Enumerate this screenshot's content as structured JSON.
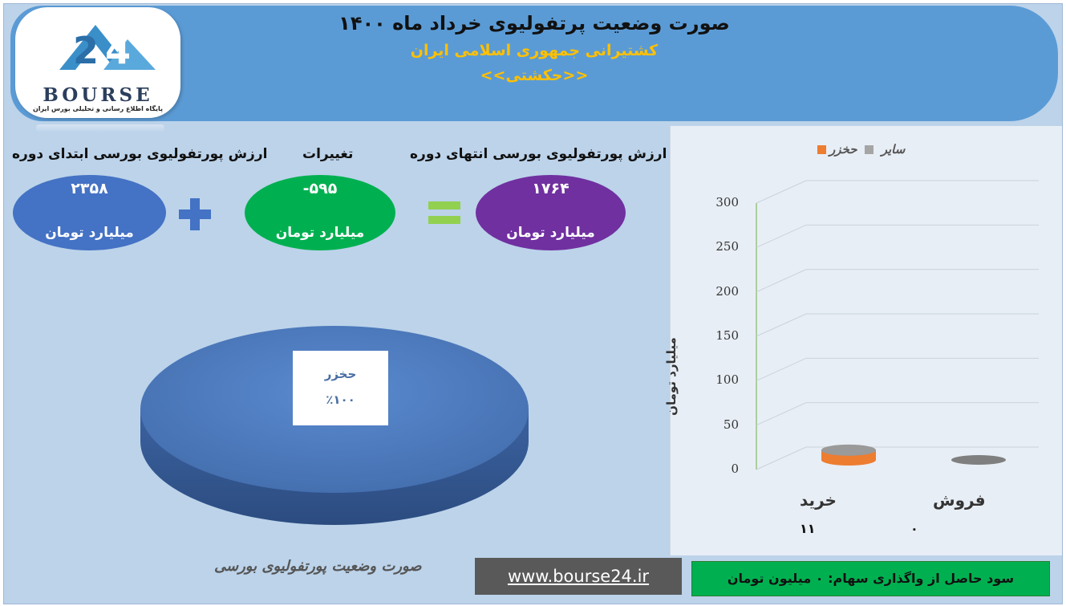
{
  "header": {
    "title": "صورت وضعیت پرتفولیوی خرداد ماه ۱۴۰۰",
    "company": "کشتیرانی جمهوری اسلامی ایران",
    "ticker": "<<حکشتی>>"
  },
  "logo": {
    "word": "BOURSE",
    "tagline": "پایگاه اطلاع رسانی و تحلیلی بورس ایران"
  },
  "summary": {
    "start_label": "ارزش پورتفولیوی بورسی ابتدای دوره",
    "start_value": "۲۳۵۸",
    "change_label": "تغییرات",
    "change_value": "-۵۹۵",
    "end_label": "ارزش پورتفولیوی بورسی انتهای دوره",
    "end_value": "۱۷۶۴",
    "unit": "میلیارد تومان",
    "colors": {
      "start": "#4472c4",
      "change": "#00b050",
      "end": "#7030a0",
      "plus": "#4472c4",
      "equals": "#92d050"
    }
  },
  "pie": {
    "slice_name": "حخزر",
    "slice_percent": "٪۱۰۰",
    "color": "#4f7fc0"
  },
  "chart_data": {
    "type": "bar",
    "categories": [
      "خرید",
      "فروش"
    ],
    "series": [
      {
        "name": "حخزر",
        "values": [
          0,
          0
        ],
        "color": "#a5a5a5"
      },
      {
        "name": "سایر",
        "values": [
          11,
          0
        ],
        "color": "#ed7d31"
      }
    ],
    "data_labels": [
      "۱۱",
      "۰"
    ],
    "ylabel": "میلیارد تومان",
    "ylim": [
      0,
      300
    ],
    "yticks": [
      0,
      50,
      100,
      150,
      200,
      250,
      300
    ],
    "legend_position": "top",
    "grid": true
  },
  "footer": {
    "caption": "صورت وضعیت پورتفولیوی بورسی",
    "url": "www.bourse24.ir",
    "profit_text": "سود حاصل از واگذاری سهام: ۰ میلیون تومان"
  }
}
